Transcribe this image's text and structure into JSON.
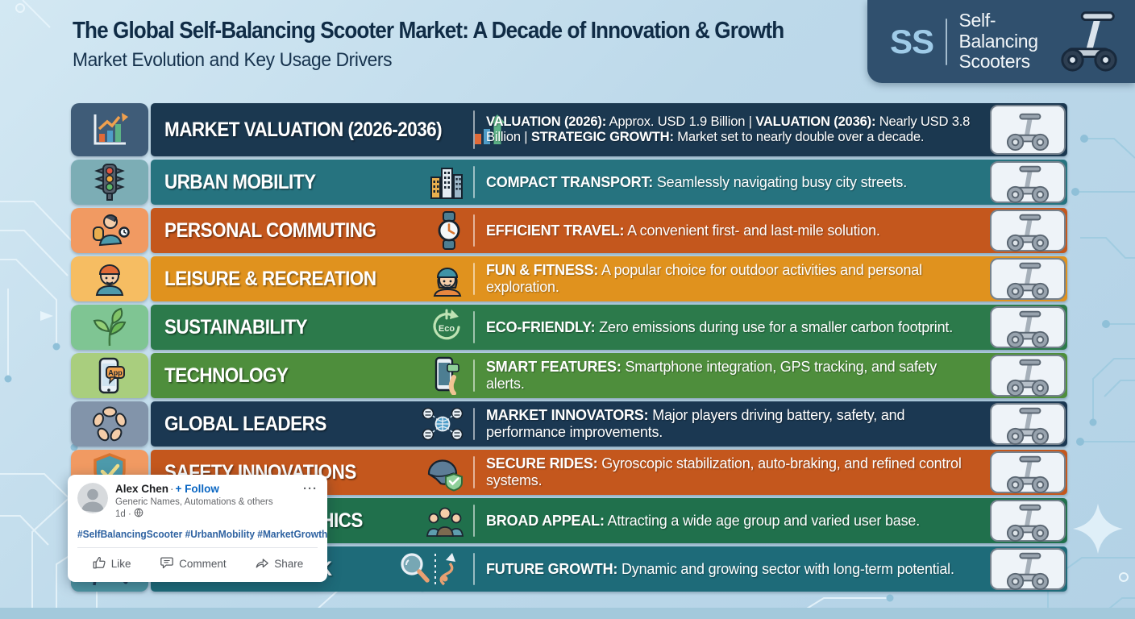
{
  "header": {
    "title": "The Global Self-Balancing Scooter Market: A Decade of Innovation & Growth",
    "subtitle": "Market Evolution and Key Usage Drivers"
  },
  "logo": {
    "monogram": "SS",
    "name_line1": "Self-Balancing",
    "name_line2": "Scooters",
    "icon": "scooter-logo-icon",
    "bg_color": "#30506e",
    "monogram_color": "#9fcbe8"
  },
  "rows": [
    {
      "title": "MARKET VALUATION (2026-2036)",
      "left_icon": "growth-chart-icon",
      "title_icon": "bar-chart-up-icon",
      "scooter_icon": "scooter-icon",
      "tall": true,
      "bar_color": "#1b3850",
      "tile_color": "#3f5c78",
      "desc": [
        {
          "b": "VALUATION (2026):",
          "t": " Approx. USD 1.9 Billion | "
        },
        {
          "b": "VALUATION (2036):",
          "t": " Nearly USD 3.8 Billion | "
        },
        {
          "b": "STRATEGIC GROWTH:",
          "t": " Market set to nearly double over a decade."
        }
      ]
    },
    {
      "title": "URBAN MOBILITY",
      "left_icon": "traffic-light-icon",
      "title_icon": "city-buildings-icon",
      "scooter_icon": "scooter-icon",
      "bar_color": "#26737f",
      "tile_color": "#7cadb5",
      "desc": [
        {
          "b": "COMPACT TRANSPORT:",
          "t": " Seamlessly navigating busy city streets."
        }
      ]
    },
    {
      "title": "PERSONAL COMMUTING",
      "left_icon": "commuter-person-icon",
      "title_icon": "wristwatch-icon",
      "scooter_icon": "scooter-icon",
      "bar_color": "#c4571d",
      "tile_color": "#f19a62",
      "desc": [
        {
          "b": "EFFICIENT TRAVEL:",
          "t": " A convenient first- and last-mile solution."
        }
      ]
    },
    {
      "title": "LEISURE & RECREATION",
      "left_icon": "helmet-kid-icon",
      "title_icon": "helmet-rider-icon",
      "scooter_icon": "scooter-icon",
      "bar_color": "#e0921e",
      "tile_color": "#f6bd62",
      "desc": [
        {
          "b": "FUN & FITNESS:",
          "t": " A popular choice for outdoor activities and personal exploration."
        }
      ]
    },
    {
      "title": "SUSTAINABILITY",
      "left_icon": "leaves-icon",
      "title_icon": "eco-cycle-icon",
      "scooter_icon": "scooter-icon",
      "bar_color": "#2c7a4b",
      "tile_color": "#7fc593",
      "desc": [
        {
          "b": "ECO-FRIENDLY:",
          "t": " Zero emissions during use for a smaller carbon footprint."
        }
      ]
    },
    {
      "title": "TECHNOLOGY",
      "left_icon": "phone-app-icon",
      "title_icon": "phone-tap-icon",
      "scooter_icon": "scooter-icon",
      "bar_color": "#4e8e3c",
      "tile_color": "#a9ce7e",
      "desc": [
        {
          "b": "SMART FEATURES:",
          "t": " Smartphone integration, GPS tracking, and safety alerts."
        }
      ]
    },
    {
      "title": "GLOBAL LEADERS",
      "left_icon": "teamwork-hands-icon",
      "title_icon": "global-network-icon",
      "scooter_icon": "scooter-icon",
      "bar_color": "#1b3852",
      "tile_color": "#8294aa",
      "desc": [
        {
          "b": "MARKET INNOVATORS:",
          "t": " Major players driving battery, safety, and performance improvements."
        }
      ]
    },
    {
      "title": "SAFETY INNOVATIONS",
      "left_icon": "shield-check-icon",
      "title_icon": "helmet-shield-icon",
      "scooter_icon": "scooter-icon",
      "bar_color": "#c4571d",
      "tile_color": "#f19a62",
      "desc": [
        {
          "b": "SECURE RIDES:",
          "t": " Gyroscopic stabilization, auto-braking, and refined control systems."
        }
      ]
    },
    {
      "title": "USER DEMOGRAPHICS",
      "left_icon": "people-group-icon",
      "title_icon": "demographics-people-icon",
      "scooter_icon": "scooter-icon",
      "bar_color": "#20704c",
      "tile_color": "#8cc79d",
      "desc": [
        {
          "b": "BROAD APPEAL:",
          "t": " Attracting a wide age group and varied user base."
        }
      ]
    },
    {
      "title": "MARKET OUTLOOK",
      "left_icon": "analyst-magnifier-icon",
      "title_icon": "search-path-icon",
      "scooter_icon": "scooter-icon",
      "bar_color": "#1e6b79",
      "tile_color": "#4e95a2",
      "desc": [
        {
          "b": "FUTURE GROWTH:",
          "t": " Dynamic and growing sector with long-term potential."
        }
      ]
    }
  ],
  "social_card": {
    "author": "Alex Chen",
    "dot": "·",
    "follow": "+ Follow",
    "byline": "Generic Names, Automations & others",
    "time": "1d ·",
    "visibility_icon": "globe-icon",
    "avatar_icon": "avatar-person-icon",
    "menu": "···",
    "hashtags": "#SelfBalancingScooter #UrbanMobility #MarketGrowth",
    "actions": [
      {
        "icon": "thumbs-up-icon",
        "label": "Like"
      },
      {
        "icon": "comment-bubble-icon",
        "label": "Comment"
      },
      {
        "icon": "share-arrow-icon",
        "label": "Share"
      }
    ]
  }
}
